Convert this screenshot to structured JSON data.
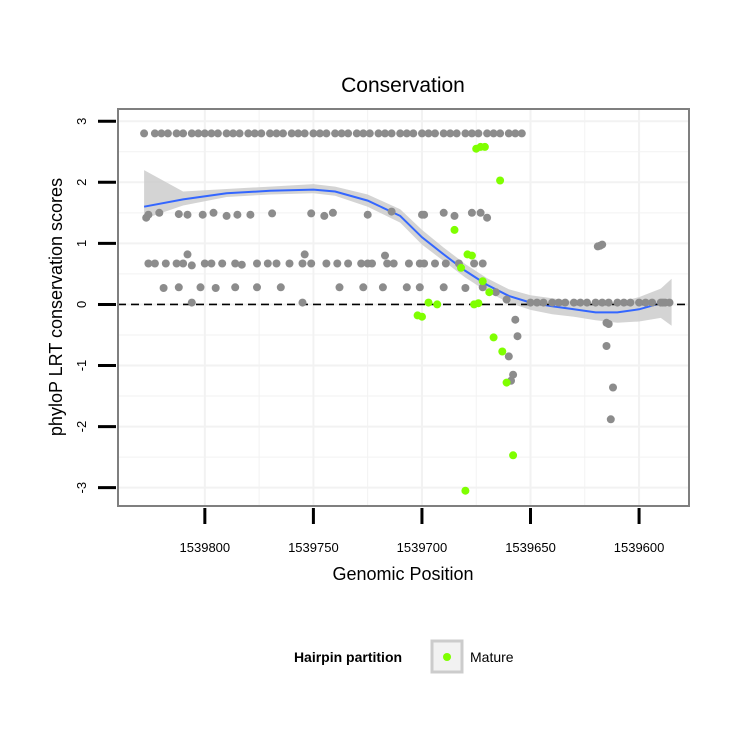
{
  "chart_data": {
    "type": "scatter",
    "title": "Conservation",
    "xlabel": "Genomic Position",
    "ylabel": "phyloP LRT conservation scores",
    "xlim": [
      1539840,
      1539577
    ],
    "x_reversed": true,
    "ylim": [
      -3.3,
      3.2
    ],
    "x_ticks": [
      1539800,
      1539750,
      1539700,
      1539650,
      1539600
    ],
    "x_tick_labels": [
      "1539800",
      "1539750",
      "1539700",
      "1539650",
      "1539600"
    ],
    "y_ticks": [
      -3,
      -2,
      -1,
      0,
      1,
      2,
      3
    ],
    "y_tick_labels": [
      "-3",
      "-2",
      "-1",
      "0",
      "1",
      "2",
      "3"
    ],
    "grid": true,
    "reference_line": {
      "y": 0,
      "style": "dashed",
      "color": "#000000"
    },
    "colors": {
      "other": "#8c8c8c",
      "mature": "#7fff00",
      "smooth": "#3366ff",
      "ribbon": "#cccccc",
      "grid": "#f2f2f2",
      "border": "#7f7f7f"
    },
    "legend": {
      "title": "Hairpin partition",
      "position": "bottom",
      "entries": [
        {
          "label": "Mature",
          "color": "#7fff00"
        }
      ]
    },
    "series": [
      {
        "name": "Other",
        "color": "#8c8c8c",
        "x": [
          1539828,
          1539823,
          1539820,
          1539817,
          1539813,
          1539810,
          1539806,
          1539803,
          1539800,
          1539797,
          1539794,
          1539790,
          1539787,
          1539784,
          1539780,
          1539777,
          1539774,
          1539770,
          1539767,
          1539764,
          1539760,
          1539757,
          1539754,
          1539750,
          1539747,
          1539744,
          1539740,
          1539737,
          1539734,
          1539730,
          1539727,
          1539724,
          1539720,
          1539717,
          1539714,
          1539710,
          1539707,
          1539704,
          1539700,
          1539697,
          1539694,
          1539690,
          1539687,
          1539684,
          1539680,
          1539677,
          1539674,
          1539670,
          1539667,
          1539664,
          1539660,
          1539657,
          1539654,
          1539650,
          1539647,
          1539644,
          1539640,
          1539637,
          1539634,
          1539630,
          1539627,
          1539624,
          1539620,
          1539617,
          1539614,
          1539610,
          1539607,
          1539604,
          1539600,
          1539597,
          1539594,
          1539590,
          1539588,
          1539586,
          1539589,
          1539617,
          1539618,
          1539619,
          1539615,
          1539615,
          1539614,
          1539612,
          1539613,
          1539827,
          1539826,
          1539821,
          1539812,
          1539808,
          1539801,
          1539796,
          1539790,
          1539785,
          1539779,
          1539769,
          1539751,
          1539745,
          1539741,
          1539725,
          1539714,
          1539700,
          1539699,
          1539690,
          1539685,
          1539677,
          1539673,
          1539670,
          1539826,
          1539823,
          1539818,
          1539813,
          1539810,
          1539806,
          1539800,
          1539797,
          1539792,
          1539786,
          1539783,
          1539776,
          1539771,
          1539767,
          1539761,
          1539755,
          1539751,
          1539744,
          1539739,
          1539734,
          1539728,
          1539725,
          1539723,
          1539716,
          1539713,
          1539706,
          1539701,
          1539699,
          1539694,
          1539689,
          1539683,
          1539676,
          1539672,
          1539819,
          1539812,
          1539806,
          1539802,
          1539795,
          1539786,
          1539776,
          1539765,
          1539755,
          1539738,
          1539727,
          1539718,
          1539707,
          1539701,
          1539690,
          1539680,
          1539672,
          1539666,
          1539661,
          1539808,
          1539754,
          1539717,
          1539660,
          1539658,
          1539659,
          1539657,
          1539656
        ],
        "y": [
          2.8,
          2.8,
          2.8,
          2.8,
          2.8,
          2.8,
          2.8,
          2.8,
          2.8,
          2.8,
          2.8,
          2.8,
          2.8,
          2.8,
          2.8,
          2.8,
          2.8,
          2.8,
          2.8,
          2.8,
          2.8,
          2.8,
          2.8,
          2.8,
          2.8,
          2.8,
          2.8,
          2.8,
          2.8,
          2.8,
          2.8,
          2.8,
          2.8,
          2.8,
          2.8,
          2.8,
          2.8,
          2.8,
          2.8,
          2.8,
          2.8,
          2.8,
          2.8,
          2.8,
          2.8,
          2.8,
          2.8,
          2.8,
          2.8,
          2.8,
          2.8,
          2.8,
          2.8,
          0.03,
          0.03,
          0.03,
          0.03,
          0.03,
          0.03,
          0.03,
          0.03,
          0.03,
          0.03,
          0.03,
          0.03,
          0.03,
          0.03,
          0.03,
          0.03,
          0.03,
          0.03,
          0.03,
          0.03,
          0.03,
          0.03,
          0.98,
          0.96,
          0.95,
          -0.3,
          -0.68,
          -0.32,
          -1.36,
          -1.88,
          1.42,
          1.47,
          1.5,
          1.48,
          1.47,
          1.47,
          1.5,
          1.45,
          1.47,
          1.47,
          1.49,
          1.49,
          1.45,
          1.5,
          1.47,
          1.52,
          1.47,
          1.47,
          1.5,
          1.45,
          1.5,
          1.5,
          1.42,
          0.67,
          0.67,
          0.67,
          0.67,
          0.67,
          0.64,
          0.67,
          0.67,
          0.67,
          0.67,
          0.65,
          0.67,
          0.67,
          0.67,
          0.67,
          0.67,
          0.67,
          0.67,
          0.67,
          0.67,
          0.67,
          0.67,
          0.67,
          0.67,
          0.67,
          0.67,
          0.67,
          0.67,
          0.67,
          0.67,
          0.67,
          0.67,
          0.67,
          0.27,
          0.28,
          0.03,
          0.28,
          0.27,
          0.28,
          0.28,
          0.28,
          0.03,
          0.28,
          0.28,
          0.28,
          0.28,
          0.28,
          0.28,
          0.27,
          0.28,
          0.2,
          0.08,
          0.82,
          0.82,
          0.8,
          -0.85,
          -1.15,
          -1.25,
          -0.25,
          -0.52
        ]
      },
      {
        "name": "Mature",
        "color": "#7fff00",
        "x": [
          1539664,
          1539671,
          1539673,
          1539675,
          1539677,
          1539682,
          1539685,
          1539693,
          1539697,
          1539700,
          1539702,
          1539658,
          1539661,
          1539663,
          1539667,
          1539669,
          1539672,
          1539674,
          1539676,
          1539679,
          1539680
        ],
        "y": [
          2.03,
          2.58,
          2.58,
          2.55,
          0.8,
          0.6,
          1.22,
          0.0,
          0.03,
          -0.2,
          -0.18,
          -2.47,
          -1.28,
          -0.77,
          -0.54,
          0.2,
          0.38,
          0.02,
          0.0,
          0.82,
          -3.05
        ]
      }
    ],
    "smooth": {
      "method": "loess",
      "x": [
        1539828,
        1539810,
        1539790,
        1539770,
        1539750,
        1539740,
        1539725,
        1539710,
        1539700,
        1539690,
        1539680,
        1539670,
        1539660,
        1539650,
        1539640,
        1539630,
        1539620,
        1539610,
        1539600,
        1539590,
        1539585
      ],
      "y": [
        1.6,
        1.72,
        1.82,
        1.86,
        1.88,
        1.85,
        1.7,
        1.45,
        1.1,
        0.82,
        0.55,
        0.32,
        0.14,
        0.03,
        -0.03,
        -0.08,
        -0.13,
        -0.13,
        -0.08,
        0.02,
        0.07
      ],
      "ci_low": [
        1.4,
        1.62,
        1.76,
        1.8,
        1.82,
        1.78,
        1.6,
        1.34,
        0.98,
        0.71,
        0.44,
        0.21,
        0.03,
        -0.09,
        -0.16,
        -0.2,
        -0.26,
        -0.3,
        -0.28,
        -0.22,
        -0.35
      ],
      "ci_high": [
        2.2,
        1.85,
        1.89,
        1.93,
        1.97,
        1.93,
        1.8,
        1.56,
        1.22,
        0.93,
        0.66,
        0.43,
        0.25,
        0.15,
        0.1,
        0.05,
        0.01,
        0.03,
        0.12,
        0.26,
        0.42
      ]
    }
  }
}
